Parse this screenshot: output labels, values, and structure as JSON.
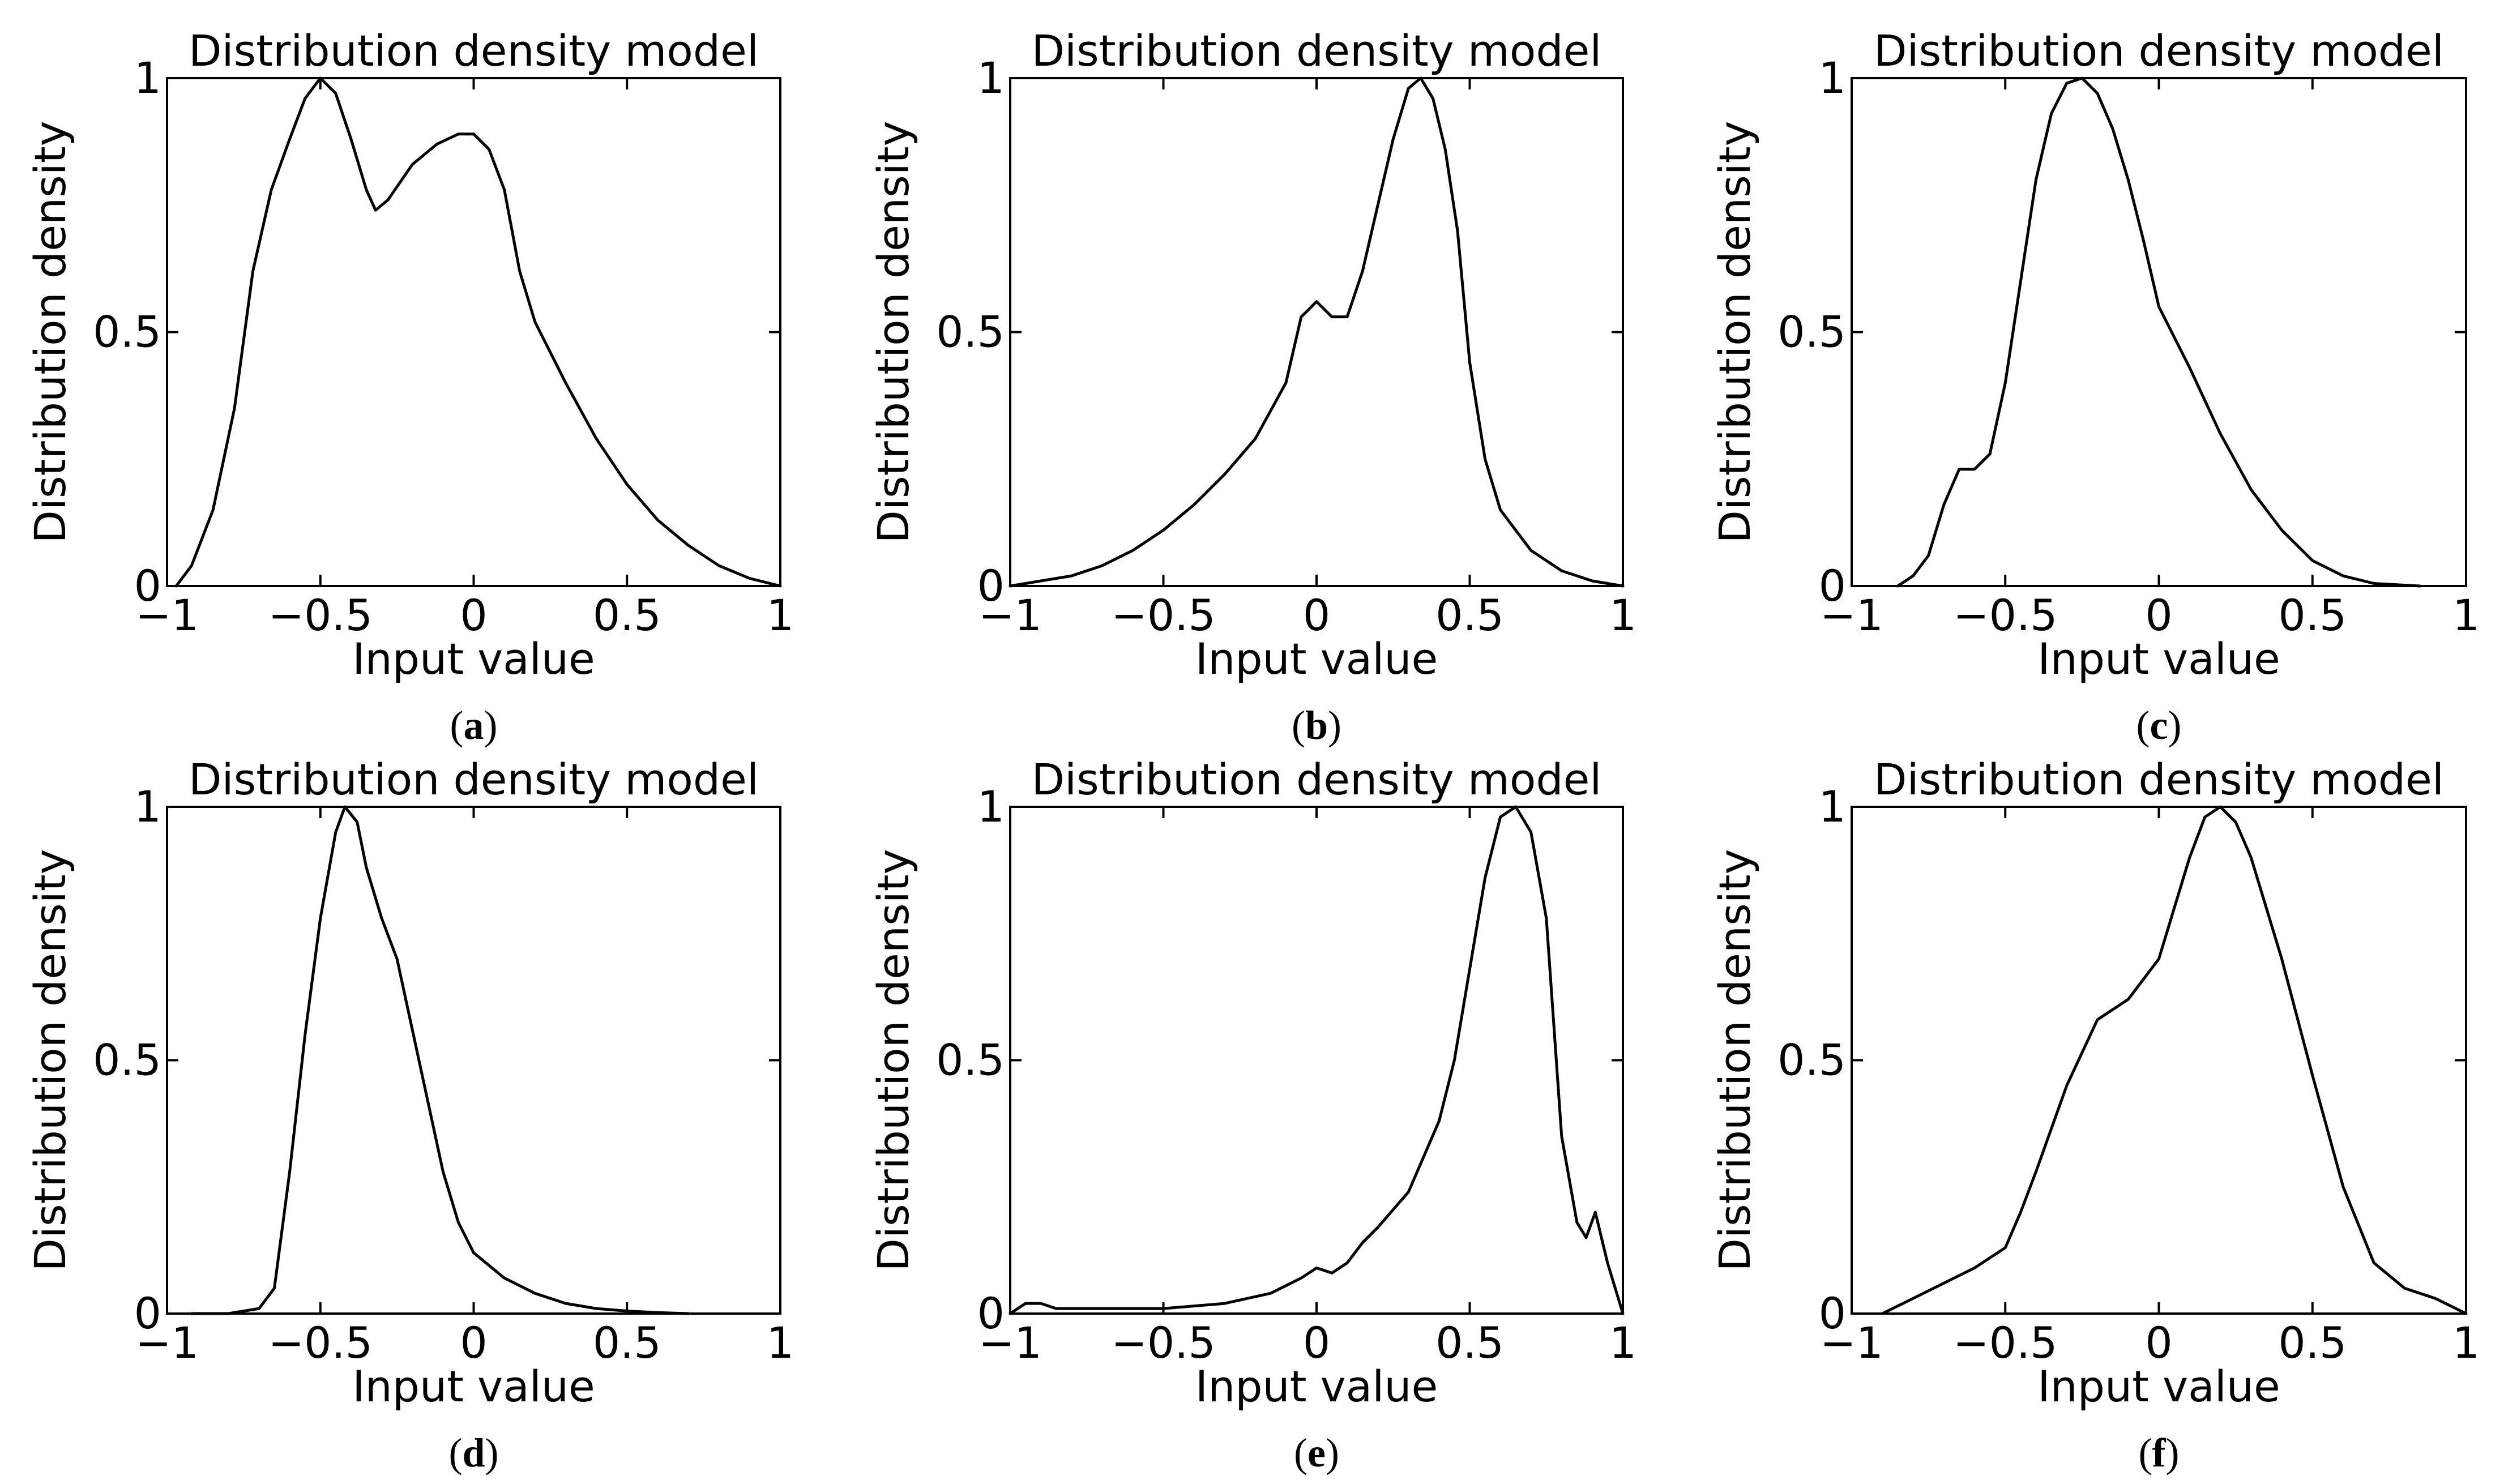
{
  "figure": {
    "captions": [
      "a",
      "b",
      "c",
      "d",
      "e",
      "f"
    ]
  },
  "chart_data": [
    {
      "id": "a",
      "type": "line",
      "title": "Distribution density model",
      "xlabel": "Input value",
      "ylabel": "Distribution density",
      "xlim": [
        -1,
        1
      ],
      "ylim": [
        0,
        1
      ],
      "xticks": [
        -1,
        -0.5,
        0,
        0.5,
        1
      ],
      "xtick_labels": [
        "−1",
        "−0.5",
        "0",
        "0.5",
        "1"
      ],
      "yticks": [
        0,
        0.5,
        1
      ],
      "ytick_labels": [
        "0",
        "0.5",
        "1"
      ],
      "series": [
        {
          "name": "density",
          "x": [
            -0.97,
            -0.92,
            -0.85,
            -0.78,
            -0.72,
            -0.66,
            -0.6,
            -0.55,
            -0.5,
            -0.45,
            -0.4,
            -0.35,
            -0.32,
            -0.28,
            -0.2,
            -0.12,
            -0.05,
            0,
            0.05,
            0.1,
            0.15,
            0.2,
            0.3,
            0.4,
            0.5,
            0.6,
            0.7,
            0.8,
            0.9,
            1
          ],
          "y": [
            0,
            0.04,
            0.15,
            0.35,
            0.62,
            0.78,
            0.88,
            0.96,
            1,
            0.97,
            0.88,
            0.78,
            0.74,
            0.76,
            0.83,
            0.87,
            0.89,
            0.89,
            0.86,
            0.78,
            0.62,
            0.52,
            0.4,
            0.29,
            0.2,
            0.13,
            0.08,
            0.04,
            0.015,
            0
          ]
        }
      ]
    },
    {
      "id": "b",
      "type": "line",
      "title": "Distribution density model",
      "xlabel": "Input value",
      "ylabel": "Distribution density",
      "xlim": [
        -1,
        1
      ],
      "ylim": [
        0,
        1
      ],
      "xticks": [
        -1,
        -0.5,
        0,
        0.5,
        1
      ],
      "xtick_labels": [
        "−1",
        "−0.5",
        "0",
        "0.5",
        "1"
      ],
      "yticks": [
        0,
        0.5,
        1
      ],
      "ytick_labels": [
        "0",
        "0.5",
        "1"
      ],
      "series": [
        {
          "name": "density",
          "x": [
            -1,
            -0.9,
            -0.8,
            -0.7,
            -0.6,
            -0.5,
            -0.4,
            -0.3,
            -0.2,
            -0.1,
            -0.05,
            0,
            0.05,
            0.1,
            0.15,
            0.2,
            0.25,
            0.3,
            0.34,
            0.38,
            0.42,
            0.46,
            0.5,
            0.55,
            0.6,
            0.7,
            0.8,
            0.9,
            1
          ],
          "y": [
            0,
            0.01,
            0.02,
            0.04,
            0.07,
            0.11,
            0.16,
            0.22,
            0.29,
            0.4,
            0.53,
            0.56,
            0.53,
            0.53,
            0.62,
            0.75,
            0.88,
            0.98,
            1,
            0.96,
            0.86,
            0.7,
            0.44,
            0.25,
            0.15,
            0.07,
            0.03,
            0.01,
            0
          ]
        }
      ]
    },
    {
      "id": "c",
      "type": "line",
      "title": "Distribution density model",
      "xlabel": "Input value",
      "ylabel": "Distribution density",
      "xlim": [
        -1,
        1
      ],
      "ylim": [
        0,
        1
      ],
      "xticks": [
        -1,
        -0.5,
        0,
        0.5,
        1
      ],
      "xtick_labels": [
        "−1",
        "−0.5",
        "0",
        "0.5",
        "1"
      ],
      "yticks": [
        0,
        0.5,
        1
      ],
      "ytick_labels": [
        "0",
        "0.5",
        "1"
      ],
      "series": [
        {
          "name": "density",
          "x": [
            -0.85,
            -0.8,
            -0.75,
            -0.7,
            -0.65,
            -0.6,
            -0.55,
            -0.5,
            -0.45,
            -0.4,
            -0.35,
            -0.3,
            -0.25,
            -0.2,
            -0.15,
            -0.1,
            -0.05,
            0,
            0.1,
            0.2,
            0.3,
            0.4,
            0.5,
            0.6,
            0.7,
            0.85
          ],
          "y": [
            0,
            0.02,
            0.06,
            0.16,
            0.23,
            0.23,
            0.26,
            0.4,
            0.6,
            0.8,
            0.93,
            0.99,
            1,
            0.97,
            0.9,
            0.8,
            0.68,
            0.55,
            0.43,
            0.3,
            0.19,
            0.11,
            0.05,
            0.02,
            0.005,
            0
          ]
        }
      ]
    },
    {
      "id": "d",
      "type": "line",
      "title": "Distribution density model",
      "xlabel": "Input value",
      "ylabel": "Distribution density",
      "xlim": [
        -1,
        1
      ],
      "ylim": [
        0,
        1
      ],
      "xticks": [
        -1,
        -0.5,
        0,
        0.5,
        1
      ],
      "xtick_labels": [
        "−1",
        "−0.5",
        "0",
        "0.5",
        "1"
      ],
      "yticks": [
        0,
        0.5,
        1
      ],
      "ytick_labels": [
        "0",
        "0.5",
        "1"
      ],
      "series": [
        {
          "name": "density",
          "x": [
            -0.92,
            -0.8,
            -0.7,
            -0.65,
            -0.6,
            -0.55,
            -0.5,
            -0.45,
            -0.42,
            -0.38,
            -0.35,
            -0.3,
            -0.25,
            -0.2,
            -0.15,
            -0.1,
            -0.05,
            0,
            0.1,
            0.2,
            0.3,
            0.4,
            0.5,
            0.6,
            0.7
          ],
          "y": [
            0,
            0,
            0.01,
            0.05,
            0.28,
            0.55,
            0.78,
            0.95,
            1,
            0.97,
            0.88,
            0.78,
            0.7,
            0.56,
            0.42,
            0.28,
            0.18,
            0.12,
            0.07,
            0.04,
            0.02,
            0.01,
            0.005,
            0.002,
            0
          ]
        }
      ]
    },
    {
      "id": "e",
      "type": "line",
      "title": "Distribution density model",
      "xlabel": "Input value",
      "ylabel": "Distribution density",
      "xlim": [
        -1,
        1
      ],
      "ylim": [
        0,
        1
      ],
      "xticks": [
        -1,
        -0.5,
        0,
        0.5,
        1
      ],
      "xtick_labels": [
        "−1",
        "−0.5",
        "0",
        "0.5",
        "1"
      ],
      "yticks": [
        0,
        0.5,
        1
      ],
      "ytick_labels": [
        "0",
        "0.5",
        "1"
      ],
      "series": [
        {
          "name": "density",
          "x": [
            -1,
            -0.95,
            -0.9,
            -0.85,
            -0.7,
            -0.5,
            -0.3,
            -0.15,
            -0.05,
            0,
            0.05,
            0.1,
            0.15,
            0.2,
            0.3,
            0.4,
            0.45,
            0.5,
            0.55,
            0.6,
            0.65,
            0.7,
            0.75,
            0.8,
            0.85,
            0.88,
            0.91,
            0.95,
            1
          ],
          "y": [
            0,
            0.02,
            0.02,
            0.01,
            0.01,
            0.01,
            0.02,
            0.04,
            0.07,
            0.09,
            0.08,
            0.1,
            0.14,
            0.17,
            0.24,
            0.38,
            0.5,
            0.68,
            0.86,
            0.98,
            1,
            0.95,
            0.78,
            0.35,
            0.18,
            0.15,
            0.2,
            0.1,
            0
          ]
        }
      ]
    },
    {
      "id": "f",
      "type": "line",
      "title": "Distribution density model",
      "xlabel": "Input value",
      "ylabel": "Distribution density",
      "xlim": [
        -1,
        1
      ],
      "ylim": [
        0,
        1
      ],
      "xticks": [
        -1,
        -0.5,
        0,
        0.5,
        1
      ],
      "xtick_labels": [
        "−1",
        "−0.5",
        "0",
        "0.5",
        "1"
      ],
      "yticks": [
        0,
        0.5,
        1
      ],
      "ytick_labels": [
        "0",
        "0.5",
        "1"
      ],
      "series": [
        {
          "name": "density",
          "x": [
            -0.9,
            -0.8,
            -0.7,
            -0.6,
            -0.5,
            -0.45,
            -0.4,
            -0.3,
            -0.2,
            -0.1,
            0,
            0.05,
            0.1,
            0.15,
            0.2,
            0.25,
            0.3,
            0.4,
            0.5,
            0.6,
            0.7,
            0.8,
            0.9,
            1
          ],
          "y": [
            0,
            0.03,
            0.06,
            0.09,
            0.13,
            0.2,
            0.28,
            0.45,
            0.58,
            0.62,
            0.7,
            0.8,
            0.9,
            0.98,
            1,
            0.97,
            0.9,
            0.7,
            0.47,
            0.25,
            0.1,
            0.05,
            0.03,
            0
          ]
        }
      ]
    }
  ]
}
